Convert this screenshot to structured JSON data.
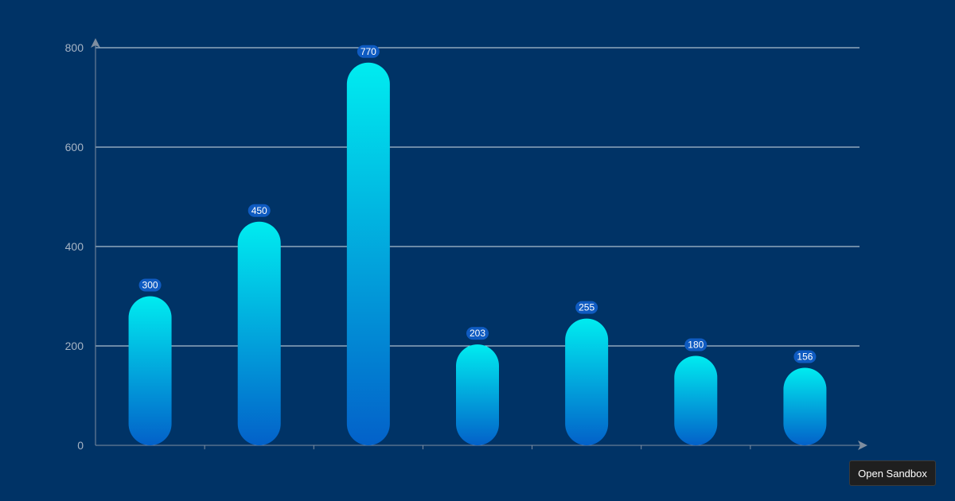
{
  "colors": {
    "background": "#003366",
    "bar_top": "#00ecf0",
    "bar_bottom": "#0361c9",
    "label_bubble": "#0f5bc1",
    "gridline": "#ffffff",
    "axis": "#7f8ea0"
  },
  "sandbox_button": {
    "label": "Open Sandbox"
  },
  "chart_data": {
    "type": "bar",
    "title": "",
    "categories": [
      "",
      "",
      "",
      "",
      "",
      "",
      ""
    ],
    "values": [
      300,
      450,
      770,
      203,
      255,
      180,
      156
    ],
    "xlabel": "",
    "ylabel": "",
    "ylim": [
      0,
      800
    ],
    "yticks": [
      0,
      200,
      400,
      600,
      800
    ],
    "grid": true,
    "legend": "none",
    "data_labels": [
      "300",
      "450",
      "770",
      "203",
      "255",
      "180",
      "156"
    ]
  }
}
